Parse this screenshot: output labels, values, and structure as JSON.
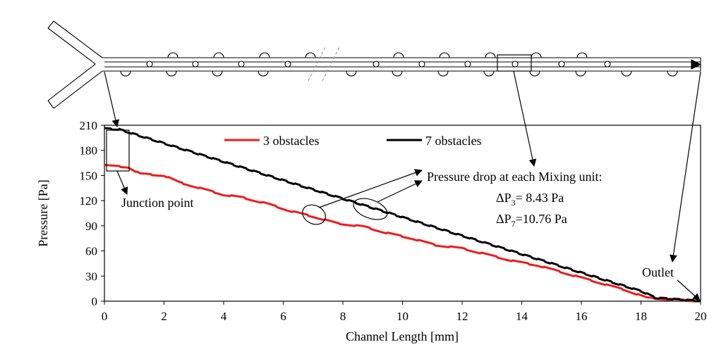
{
  "chart_data": {
    "type": "line",
    "title": "",
    "xlabel": "Channel Length [mm]",
    "ylabel": "Pressure [Pa]",
    "xlim": [
      0,
      20
    ],
    "ylim": [
      0,
      210
    ],
    "x_ticks": [
      0,
      2,
      4,
      6,
      8,
      10,
      12,
      14,
      16,
      18,
      20
    ],
    "y_ticks": [
      0,
      30,
      60,
      90,
      120,
      150,
      180,
      210
    ],
    "grid": false,
    "legend_position": "top-center",
    "series": [
      {
        "name": "3 obstacles",
        "color": "#ee1c1c",
        "steps": 19,
        "x": [
          0,
          0.8,
          1.2,
          2,
          2.5,
          3.2,
          4,
          4.6,
          5.5,
          6.2,
          7,
          7.8,
          8.7,
          9.4,
          10.3,
          11.1,
          12,
          12.8,
          13.7,
          14.5,
          15.3,
          16,
          16.8,
          17.5,
          18.2,
          19,
          20
        ],
        "y": [
          162,
          160,
          152,
          150,
          142,
          135,
          127,
          124,
          116,
          108,
          101,
          93,
          89,
          82,
          75,
          67,
          63,
          56,
          48,
          43,
          35,
          28,
          20,
          13,
          4,
          2,
          0
        ]
      },
      {
        "name": "7 obstacles",
        "color": "#000000",
        "steps": 44,
        "x": [
          0,
          0.5,
          18,
          18.5,
          20
        ],
        "y": [
          206,
          205,
          12,
          4,
          0
        ]
      }
    ],
    "annotations": {
      "junction": "Junction point",
      "pressure_drop_title": "Pressure drop at each Mixing unit:",
      "dp3": {
        "symbol": "ΔP",
        "sub": "3",
        "value": "= 8.43 Pa"
      },
      "dp7": {
        "symbol": "ΔP",
        "sub": "7",
        "value": "=10.76 Pa"
      },
      "outlet": "Outlet"
    }
  }
}
